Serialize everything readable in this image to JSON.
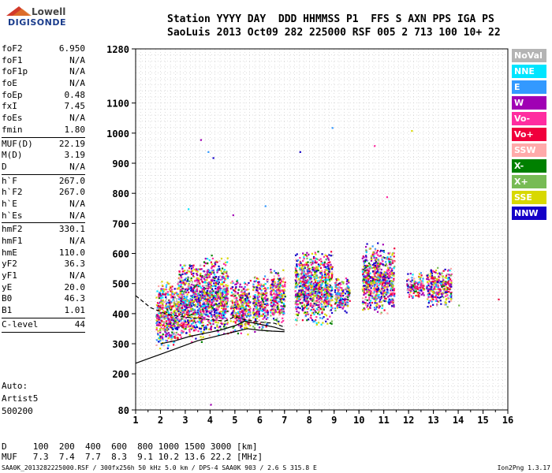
{
  "logo": {
    "line1": "Lowell",
    "line2": "DIGISONDE"
  },
  "header": {
    "line1": "Station YYYY DAY  DDD HHMMSS P1  FFS S AXN PPS IGA PS",
    "line2": "SaoLuis 2013 Oct09 282 225000 RSF 005 2 713 100 10+ 22"
  },
  "params_group1": [
    {
      "k": "foF2",
      "v": "6.950"
    },
    {
      "k": "foF1",
      "v": "N/A"
    },
    {
      "k": "foF1p",
      "v": "N/A"
    },
    {
      "k": "foE",
      "v": "N/A"
    },
    {
      "k": "foEp",
      "v": "0.48"
    },
    {
      "k": "fxI",
      "v": "7.45"
    },
    {
      "k": "foEs",
      "v": "N/A"
    },
    {
      "k": "fmin",
      "v": "1.80"
    }
  ],
  "params_group2": [
    {
      "k": "MUF(D)",
      "v": "22.19"
    },
    {
      "k": "M(D)",
      "v": "3.19"
    },
    {
      "k": "D",
      "v": "N/A"
    }
  ],
  "params_group3": [
    {
      "k": "h`F",
      "v": "267.0"
    },
    {
      "k": "h`F2",
      "v": "267.0"
    },
    {
      "k": "h`E",
      "v": "N/A"
    },
    {
      "k": "h`Es",
      "v": "N/A"
    }
  ],
  "params_group4": [
    {
      "k": "hmF2",
      "v": "330.1"
    },
    {
      "k": "hmF1",
      "v": "N/A"
    },
    {
      "k": "hmE",
      "v": "110.0"
    },
    {
      "k": "yF2",
      "v": "36.3"
    },
    {
      "k": "yF1",
      "v": "N/A"
    },
    {
      "k": "yE",
      "v": "20.0"
    },
    {
      "k": "B0",
      "v": "46.3"
    },
    {
      "k": "B1",
      "v": "1.01"
    }
  ],
  "params_group5": [
    {
      "k": "C-level",
      "v": "44"
    }
  ],
  "auto": {
    "line1": "Auto:",
    "line2": "Artist5",
    "line3": "500200"
  },
  "legend": [
    {
      "label": "NoVal",
      "color": "#b4b4b4"
    },
    {
      "label": "NNE",
      "color": "#00e5ff"
    },
    {
      "label": "E",
      "color": "#3399ff"
    },
    {
      "label": "W",
      "color": "#a000b4"
    },
    {
      "label": "Vo-",
      "color": "#ff2ca0"
    },
    {
      "label": "Vo+",
      "color": "#f0003c"
    },
    {
      "label": "SSW",
      "color": "#ffaaaa"
    },
    {
      "label": "X-",
      "color": "#008000"
    },
    {
      "label": "X+",
      "color": "#77bb55"
    },
    {
      "label": "SSE",
      "color": "#d8d800"
    },
    {
      "label": "NNW",
      "color": "#1400c8"
    }
  ],
  "bottom": {
    "line1": "D     100  200  400  600  800 1000 1500 3000 [km]",
    "line2": "MUF   7.3  7.4  7.7  8.3  9.1 10.2 13.6 22.2 [MHz]"
  },
  "footer": {
    "left": "SAA0K_2013282225000.RSF / 300fx256h 50 kHz 5.0 km / DPS-4 SAA0K 903 / 2.6 S 315.8 E",
    "right": "Ion2Png 1.3.17"
  },
  "chart_data": {
    "type": "scatter",
    "xlim": [
      1,
      16
    ],
    "ylim": [
      80,
      1280
    ],
    "xticks": [
      1,
      2,
      3,
      4,
      5,
      6,
      7,
      8,
      9,
      10,
      11,
      12,
      13,
      14,
      15,
      16
    ],
    "yticks": [
      80,
      200,
      300,
      400,
      500,
      600,
      700,
      800,
      900,
      1000,
      1100,
      1280
    ],
    "grid": true,
    "clusters": [
      {
        "x": [
          1.8,
          2.7
        ],
        "y": [
          280,
          520
        ]
      },
      {
        "x": [
          2.7,
          3.7
        ],
        "y": [
          300,
          580
        ]
      },
      {
        "x": [
          3.7,
          4.7
        ],
        "y": [
          320,
          600
        ]
      },
      {
        "x": [
          4.8,
          5.6
        ],
        "y": [
          330,
          520
        ]
      },
      {
        "x": [
          5.7,
          6.3
        ],
        "y": [
          340,
          540
        ]
      },
      {
        "x": [
          6.4,
          7.0
        ],
        "y": [
          360,
          560
        ]
      },
      {
        "x": [
          7.4,
          8.9
        ],
        "y": [
          360,
          620
        ]
      },
      {
        "x": [
          9.0,
          9.6
        ],
        "y": [
          400,
          530
        ]
      },
      {
        "x": [
          10.1,
          11.4
        ],
        "y": [
          400,
          640
        ]
      },
      {
        "x": [
          11.9,
          12.6
        ],
        "y": [
          450,
          540
        ]
      },
      {
        "x": [
          12.7,
          13.7
        ],
        "y": [
          420,
          560
        ]
      }
    ],
    "sparse_points": [
      {
        "x": 3.9,
        "y": 940
      },
      {
        "x": 4.1,
        "y": 920
      },
      {
        "x": 3.6,
        "y": 980
      },
      {
        "x": 8.9,
        "y": 1020
      },
      {
        "x": 7.6,
        "y": 940
      },
      {
        "x": 12.1,
        "y": 1010
      },
      {
        "x": 10.6,
        "y": 960
      },
      {
        "x": 3.1,
        "y": 750
      },
      {
        "x": 6.2,
        "y": 760
      },
      {
        "x": 4.9,
        "y": 730
      },
      {
        "x": 15.6,
        "y": 450
      },
      {
        "x": 14.0,
        "y": 430
      },
      {
        "x": 4.0,
        "y": 100
      },
      {
        "x": 11.1,
        "y": 790
      }
    ],
    "trace_curve": {
      "x": [
        1.0,
        1.5,
        2.0,
        2.5,
        3.0,
        3.5,
        4.0,
        4.5,
        5.0,
        5.5,
        6.0,
        6.5,
        7.0
      ],
      "y": [
        235,
        250,
        265,
        280,
        295,
        310,
        320,
        330,
        340,
        350,
        345,
        342,
        340
      ]
    },
    "trace_upper": {
      "x": [
        1.0,
        1.6,
        2.2,
        2.8,
        3.4,
        4.0,
        4.6,
        5.0,
        5.4,
        6.0,
        6.6,
        7.0
      ],
      "y": [
        460,
        420,
        400,
        390,
        385,
        380,
        375,
        390,
        380,
        372,
        368,
        355
      ]
    },
    "trace_lower": {
      "x": [
        2.0,
        2.6,
        3.2,
        3.8,
        4.4,
        5.0,
        5.4,
        6.0,
        6.6,
        7.0
      ],
      "y": [
        300,
        310,
        325,
        335,
        345,
        360,
        375,
        365,
        355,
        345
      ]
    }
  }
}
